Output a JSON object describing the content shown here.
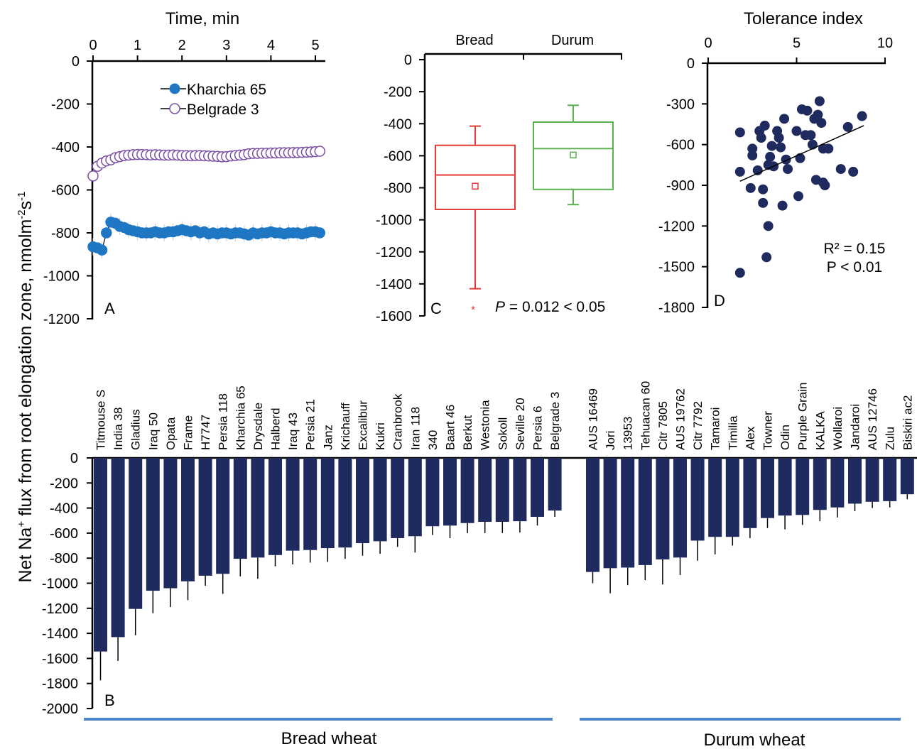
{
  "shared": {
    "ylabel_prefix": "Net Na",
    "ylabel_sup": "+",
    "ylabel_main": " flux from root elongation zone, nmolm",
    "ylabel_sup2": "-2",
    "ylabel_s": "s",
    "ylabel_sup3": "-1",
    "ylabel": "Net Na+ flux from root elongation zone, nmolm-2s-1"
  },
  "chart_data": [
    {
      "panel": "A",
      "type": "line",
      "xlabel": "Time, min",
      "ylabel": "Net Na+ flux from root elongation zone, nmolm-2s-1",
      "xlim": [
        0,
        5
      ],
      "ylim": [
        -1200,
        0
      ],
      "x_ticks": [
        "0",
        "1",
        "2",
        "3",
        "4",
        "5"
      ],
      "y_ticks": [
        "0",
        "-200",
        "-400",
        "-600",
        "-800",
        "-1000",
        "-1200"
      ],
      "legend_position": "top-right",
      "series": [
        {
          "name": "Kharchia 65",
          "color": "#1f77c4",
          "marker": "filled-circle",
          "x": [
            0.0,
            0.1,
            0.2,
            0.3,
            0.4,
            0.5,
            0.6,
            0.7,
            0.8,
            0.9,
            1.0,
            1.1,
            1.2,
            1.3,
            1.4,
            1.5,
            1.6,
            1.7,
            1.8,
            1.9,
            2.0,
            2.1,
            2.2,
            2.3,
            2.4,
            2.5,
            2.6,
            2.7,
            2.8,
            2.9,
            3.0,
            3.1,
            3.2,
            3.3,
            3.4,
            3.5,
            3.6,
            3.7,
            3.8,
            3.9,
            4.0,
            4.1,
            4.2,
            4.3,
            4.4,
            4.5,
            4.6,
            4.7,
            4.8,
            4.9,
            5.0,
            5.1
          ],
          "y": [
            -865,
            -870,
            -880,
            -800,
            -750,
            -755,
            -770,
            -775,
            -785,
            -790,
            -795,
            -800,
            -800,
            -800,
            -795,
            -800,
            -800,
            -795,
            -795,
            -790,
            -785,
            -790,
            -795,
            -790,
            -800,
            -795,
            -805,
            -800,
            -805,
            -800,
            -800,
            -805,
            -800,
            -800,
            -805,
            -810,
            -800,
            -805,
            -800,
            -800,
            -795,
            -800,
            -800,
            -805,
            -800,
            -800,
            -800,
            -805,
            -800,
            -795,
            -795,
            -800
          ]
        },
        {
          "name": "Belgrade 3",
          "color": "#7a4fa3",
          "marker": "open-circle",
          "x": [
            0.0,
            0.1,
            0.2,
            0.3,
            0.4,
            0.5,
            0.6,
            0.7,
            0.8,
            0.9,
            1.0,
            1.1,
            1.2,
            1.3,
            1.4,
            1.5,
            1.6,
            1.7,
            1.8,
            1.9,
            2.0,
            2.1,
            2.2,
            2.3,
            2.4,
            2.5,
            2.6,
            2.7,
            2.8,
            2.9,
            3.0,
            3.1,
            3.2,
            3.3,
            3.4,
            3.5,
            3.6,
            3.7,
            3.8,
            3.9,
            4.0,
            4.1,
            4.2,
            4.3,
            4.4,
            4.5,
            4.6,
            4.7,
            4.8,
            4.9,
            5.0,
            5.1
          ],
          "y": [
            -535,
            -490,
            -475,
            -465,
            -460,
            -450,
            -445,
            -440,
            -438,
            -436,
            -435,
            -435,
            -436,
            -437,
            -436,
            -437,
            -438,
            -438,
            -437,
            -438,
            -440,
            -440,
            -441,
            -440,
            -440,
            -441,
            -442,
            -443,
            -444,
            -446,
            -445,
            -442,
            -440,
            -438,
            -436,
            -432,
            -430,
            -430,
            -429,
            -429,
            -428,
            -428,
            -427,
            -427,
            -427,
            -426,
            -426,
            -425,
            -424,
            -423,
            -422,
            -420
          ]
        }
      ],
      "panel_label": "A"
    },
    {
      "panel": "C",
      "type": "box",
      "categories": [
        "Bread",
        "Durum"
      ],
      "ylim": [
        -1600,
        0
      ],
      "y_ticks": [
        "0",
        "-200",
        "-400",
        "-600",
        "-800",
        "-1000",
        "-1200",
        "-1400",
        "-1600"
      ],
      "boxes": [
        {
          "name": "Bread",
          "color": "#e53935",
          "whisker_low": -1430,
          "q1": -935,
          "median": -720,
          "q3": -535,
          "whisker_high": -415,
          "mean": -790,
          "outliers": [
            -1550
          ]
        },
        {
          "name": "Durum",
          "color": "#5bb04f",
          "whisker_low": -905,
          "q1": -810,
          "median": -555,
          "q3": -390,
          "whisker_high": -285,
          "mean": -595,
          "outliers": []
        }
      ],
      "annotation_p": "P",
      "annotation_value": " = 0.012 < 0.05",
      "annotation_star": "*",
      "panel_label": "C"
    },
    {
      "panel": "D",
      "type": "scatter",
      "xlabel": "Tolerance index",
      "xlim": [
        0,
        10
      ],
      "ylim": [
        -1800,
        0
      ],
      "x_ticks": [
        "0",
        "5",
        "10"
      ],
      "y_ticks": [
        "0",
        "-300",
        "-600",
        "-900",
        "-1200",
        "-1500",
        "-1800"
      ],
      "color": "#1f2a5e",
      "points": [
        [
          1.8,
          -1545
        ],
        [
          1.8,
          -510
        ],
        [
          1.8,
          -800
        ],
        [
          2.4,
          -920
        ],
        [
          2.5,
          -680
        ],
        [
          2.5,
          -630
        ],
        [
          2.8,
          -790
        ],
        [
          2.9,
          -500
        ],
        [
          3.0,
          -550
        ],
        [
          3.2,
          -460
        ],
        [
          3.1,
          -1030
        ],
        [
          3.1,
          -930
        ],
        [
          3.4,
          -1200
        ],
        [
          3.3,
          -1430
        ],
        [
          3.4,
          -750
        ],
        [
          3.5,
          -690
        ],
        [
          3.6,
          -610
        ],
        [
          3.7,
          -760
        ],
        [
          3.9,
          -500
        ],
        [
          4.0,
          -550
        ],
        [
          4.1,
          -620
        ],
        [
          4.2,
          -1050
        ],
        [
          4.3,
          -410
        ],
        [
          4.4,
          -710
        ],
        [
          4.5,
          -780
        ],
        [
          5.0,
          -500
        ],
        [
          5.1,
          -980
        ],
        [
          5.2,
          -700
        ],
        [
          5.3,
          -340
        ],
        [
          5.5,
          -530
        ],
        [
          5.6,
          -350
        ],
        [
          5.8,
          -530
        ],
        [
          5.9,
          -600
        ],
        [
          6.0,
          -410
        ],
        [
          6.1,
          -860
        ],
        [
          6.2,
          -380
        ],
        [
          6.3,
          -280
        ],
        [
          6.4,
          -440
        ],
        [
          6.5,
          -630
        ],
        [
          6.5,
          -880
        ],
        [
          6.6,
          -900
        ],
        [
          6.8,
          -630
        ],
        [
          7.5,
          -780
        ],
        [
          7.9,
          -470
        ],
        [
          8.2,
          -800
        ],
        [
          8.7,
          -390
        ]
      ],
      "trendline": {
        "x": [
          1.8,
          8.8
        ],
        "y": [
          -870,
          -460
        ]
      },
      "r2": "R² = 0.15",
      "p": "P < 0.01",
      "panel_label": "D"
    },
    {
      "panel": "B",
      "type": "bar",
      "ylim": [
        -2000,
        0
      ],
      "y_ticks": [
        "0",
        "-200",
        "-400",
        "-600",
        "-800",
        "-1000",
        "-1200",
        "-1400",
        "-1600",
        "-1800",
        "-2000"
      ],
      "color": "#1f2a5e",
      "groups": [
        {
          "name": "Bread wheat",
          "categories": [
            "Titmouse S",
            "India 38",
            "Gladius",
            "Iraq 50",
            "Opata",
            "Frame",
            "H7747",
            "Persia 118",
            "Kharchia 65",
            "Drysdale",
            "Halberd",
            "Iraq 43",
            "Persia 21",
            "Janz",
            "Krichauff",
            "Excalibur",
            "Kukri",
            "Cranbrook",
            "Iran 118",
            "340",
            "Baart 46",
            "Berkut",
            "Westonia",
            "Sokoll",
            "Seville 20",
            "Persia 6",
            "Belgrade 3"
          ],
          "values": [
            -1545,
            -1430,
            -1205,
            -1060,
            -1040,
            -985,
            -940,
            -925,
            -805,
            -795,
            -775,
            -740,
            -735,
            -720,
            -715,
            -680,
            -665,
            -640,
            -625,
            -545,
            -540,
            -520,
            -510,
            -510,
            -505,
            -470,
            -420
          ],
          "errors": [
            230,
            190,
            210,
            180,
            150,
            150,
            80,
            160,
            140,
            170,
            90,
            110,
            100,
            110,
            90,
            100,
            100,
            70,
            130,
            70,
            100,
            80,
            90,
            90,
            90,
            70,
            50
          ]
        },
        {
          "name": "Durum wheat",
          "categories": [
            "AUS 16469",
            "Jori",
            "13953",
            "Tehuacan 60",
            "Citr 7805",
            "AUS 19762",
            "Citr 7792",
            "Tamaroi",
            "Timilia",
            "Alex",
            "Towner",
            "Odin",
            "Purple Grain",
            "KALKA",
            "Wollaroi",
            "Jandaroi",
            "AUS 12746",
            "Zulu",
            "Biskiri ac2"
          ],
          "values": [
            -910,
            -880,
            -875,
            -855,
            -810,
            -795,
            -660,
            -630,
            -630,
            -560,
            -480,
            -460,
            -455,
            -415,
            -395,
            -365,
            -350,
            -345,
            -290
          ],
          "errors": [
            90,
            200,
            140,
            120,
            200,
            140,
            160,
            140,
            70,
            80,
            80,
            110,
            80,
            90,
            80,
            60,
            50,
            50,
            40
          ]
        }
      ],
      "panel_label": "B"
    }
  ]
}
